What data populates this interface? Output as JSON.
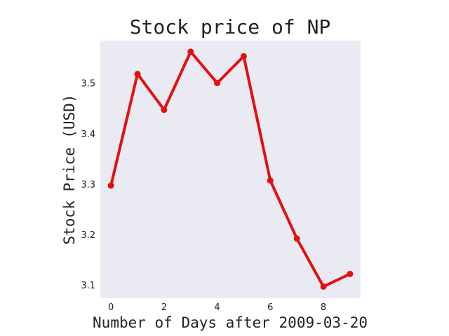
{
  "chart_data": {
    "type": "line",
    "title": "Stock price of NP",
    "xlabel": "Number of Days after 2009-03-20",
    "ylabel": "Stock Price (USD)",
    "x": [
      0,
      1,
      2,
      3,
      4,
      5,
      6,
      7,
      8,
      9
    ],
    "series": [
      {
        "values": [
          3.297,
          3.518,
          3.447,
          3.562,
          3.5,
          3.553,
          3.307,
          3.192,
          3.097,
          3.122
        ],
        "color": "#e41010",
        "marker": "circle"
      }
    ],
    "xlim": [
      -0.4,
      9.4
    ],
    "ylim": [
      3.074,
      3.584
    ],
    "x_ticks": [
      0,
      2,
      4,
      6,
      8
    ],
    "x_tick_labels": [
      "0",
      "2",
      "4",
      "6",
      "8"
    ],
    "y_ticks": [
      3.1,
      3.2,
      3.3,
      3.4,
      3.5
    ],
    "y_tick_labels": [
      "3.1",
      "3.2",
      "3.3",
      "3.4",
      "3.5"
    ],
    "grid": false,
    "plot_background": "#eaeaf2"
  }
}
